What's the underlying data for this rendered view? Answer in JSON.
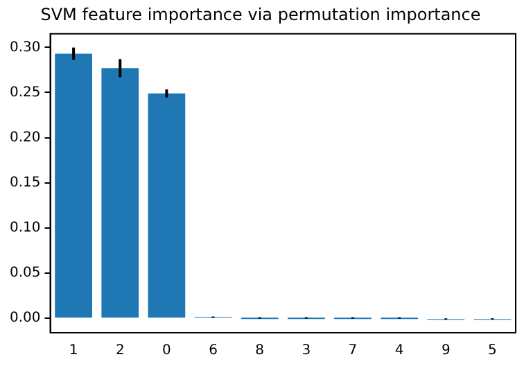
{
  "chart_data": {
    "type": "bar",
    "title": "SVM feature importance via permutation importance",
    "categories": [
      "1",
      "2",
      "0",
      "6",
      "8",
      "3",
      "7",
      "4",
      "9",
      "5"
    ],
    "values": [
      0.293,
      0.277,
      0.249,
      0.001,
      0,
      0,
      0,
      0,
      -0.001,
      -0.001
    ],
    "errors": [
      0.0068,
      0.01,
      0.0045,
      0.0006,
      0.0004,
      0.0004,
      0.0004,
      0.0004,
      0.0006,
      0.0005
    ],
    "color": "#1f77b4",
    "ylim": [
      -0.016,
      0.315
    ],
    "yticks": [
      {
        "value": 0,
        "label": "0.00"
      },
      0.05,
      {
        "value": 0.1,
        "label": "0.10"
      },
      0.15,
      {
        "value": 0.2,
        "label": "0.20"
      },
      0.25,
      {
        "value": 0.3,
        "label": "0.30"
      }
    ],
    "grid": false,
    "legend": false
  }
}
